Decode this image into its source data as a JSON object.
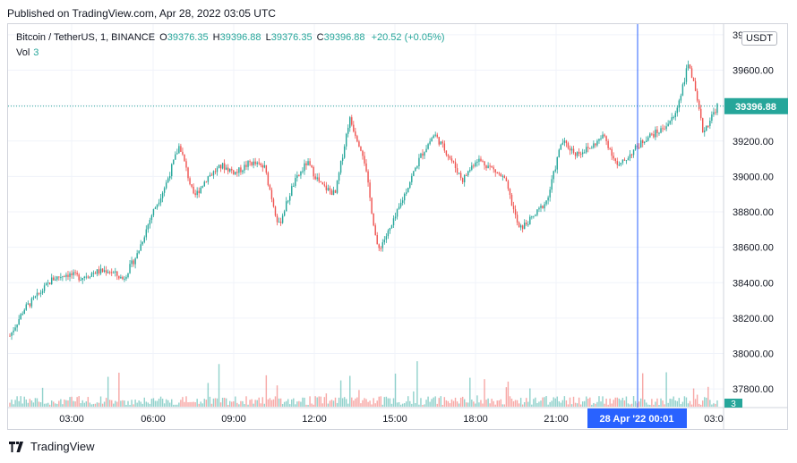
{
  "header": {
    "published": "Published on TradingView.com, Apr 28, 2022 03:05 UTC"
  },
  "legend": {
    "symbol": "Bitcoin / TetherUS, 1, BINANCE",
    "o_label": "O",
    "o": "39376.35",
    "h_label": "H",
    "h": "39396.88",
    "l_label": "L",
    "l": "39376.35",
    "c_label": "C",
    "c": "39396.88",
    "change": "+20.52 (+0.05%)",
    "vol_label": "Vol",
    "vol": "3"
  },
  "currency_button": "USDT",
  "price_badge": "39396.88",
  "volume_badge": "3",
  "crosshair_label": "28 Apr '22   00:01",
  "footer": {
    "brand": "TradingView"
  },
  "colors": {
    "up": "#26a69a",
    "down": "#ef5350",
    "crosshair": "#2962ff",
    "grid": "#f0f3fa"
  },
  "chart_data": {
    "type": "candlestick",
    "y_ticks": [
      "37800.00",
      "38000.00",
      "38200.00",
      "38400.00",
      "38600.00",
      "38800.00",
      "39000.00",
      "39200.00",
      "39400.00",
      "39600.00",
      "39800.00"
    ],
    "x_ticks": [
      "03:00",
      "06:00",
      "09:00",
      "12:00",
      "15:00",
      "18:00",
      "21:00",
      "00:01",
      "03:0"
    ],
    "ylim": [
      37700,
      39860
    ],
    "current_price": 39396.88,
    "price_path": [
      {
        "t": "00:00",
        "p": 38100
      },
      {
        "t": "00:30",
        "p": 38250
      },
      {
        "t": "01:00",
        "p": 38330
      },
      {
        "t": "02:00",
        "p": 38420
      },
      {
        "t": "03:00",
        "p": 38450
      },
      {
        "t": "04:00",
        "p": 38430
      },
      {
        "t": "05:00",
        "p": 38460
      },
      {
        "t": "06:00",
        "p": 38470
      },
      {
        "t": "06:30",
        "p": 38420
      },
      {
        "t": "07:00",
        "p": 38560
      },
      {
        "t": "07:30",
        "p": 38780
      },
      {
        "t": "08:00",
        "p": 38950
      },
      {
        "t": "08:40",
        "p": 39180
      },
      {
        "t": "09:00",
        "p": 38880
      },
      {
        "t": "09:30",
        "p": 39000
      },
      {
        "t": "10:00",
        "p": 39060
      },
      {
        "t": "10:30",
        "p": 39020
      },
      {
        "t": "11:00",
        "p": 39080
      },
      {
        "t": "11:30",
        "p": 39050
      },
      {
        "t": "12:00",
        "p": 38720
      },
      {
        "t": "12:30",
        "p": 38950
      },
      {
        "t": "13:00",
        "p": 39080
      },
      {
        "t": "13:30",
        "p": 38950
      },
      {
        "t": "14:00",
        "p": 38900
      },
      {
        "t": "14:20",
        "p": 39330
      },
      {
        "t": "14:40",
        "p": 39120
      },
      {
        "t": "15:00",
        "p": 38580
      },
      {
        "t": "15:30",
        "p": 38720
      },
      {
        "t": "16:00",
        "p": 38920
      },
      {
        "t": "16:30",
        "p": 39110
      },
      {
        "t": "17:00",
        "p": 39240
      },
      {
        "t": "17:30",
        "p": 39120
      },
      {
        "t": "18:00",
        "p": 38980
      },
      {
        "t": "18:30",
        "p": 39100
      },
      {
        "t": "19:00",
        "p": 39050
      },
      {
        "t": "19:30",
        "p": 38980
      },
      {
        "t": "20:00",
        "p": 38700
      },
      {
        "t": "20:30",
        "p": 38770
      },
      {
        "t": "21:00",
        "p": 38870
      },
      {
        "t": "21:30",
        "p": 39200
      },
      {
        "t": "22:00",
        "p": 39130
      },
      {
        "t": "22:30",
        "p": 39160
      },
      {
        "t": "23:00",
        "p": 39230
      },
      {
        "t": "23:30",
        "p": 39050
      },
      {
        "t": "00:00",
        "p": 39140
      },
      {
        "t": "00:30",
        "p": 39220
      },
      {
        "t": "01:00",
        "p": 39260
      },
      {
        "t": "01:30",
        "p": 39340
      },
      {
        "t": "02:00",
        "p": 39650
      },
      {
        "t": "02:30",
        "p": 39250
      },
      {
        "t": "03:00",
        "p": 39396.88
      }
    ]
  }
}
